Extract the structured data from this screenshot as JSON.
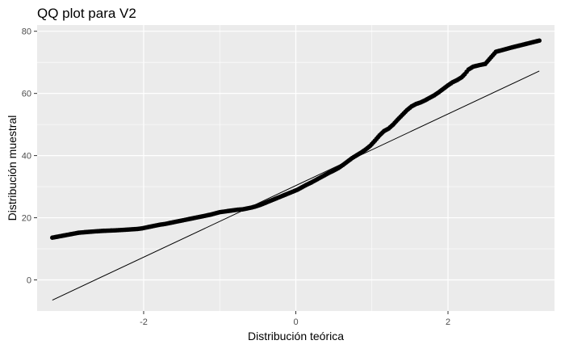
{
  "chart_data": {
    "type": "scatter",
    "title": "QQ plot para V2",
    "xlabel": "Distribución teórica",
    "ylabel": "Distribución muestral",
    "xlim": [
      -3.4,
      3.4
    ],
    "ylim": [
      -10,
      82
    ],
    "x_ticks": [
      -2,
      0,
      2
    ],
    "y_ticks": [
      0,
      20,
      40,
      60,
      80
    ],
    "grid": true,
    "legend": "none",
    "colors": {
      "panel": "#ebebeb",
      "grid": "#ffffff",
      "points": "#000000",
      "line": "#000000"
    },
    "reference_line": {
      "x": [
        -3.2,
        3.2
      ],
      "y": [
        -6.5,
        67.2
      ]
    },
    "points": {
      "x": [
        -3.2,
        -2.85,
        -2.65,
        -2.52,
        -2.42,
        -2.33,
        -2.26,
        -2.2,
        -2.14,
        -2.08,
        -2.02,
        -1.96,
        -1.9,
        -1.84,
        -1.78,
        -1.72,
        -1.66,
        -1.6,
        -1.54,
        -1.48,
        -1.42,
        -1.36,
        -1.3,
        -1.24,
        -1.18,
        -1.12,
        -1.06,
        -1.0,
        -0.94,
        -0.88,
        -0.82,
        -0.76,
        -0.7,
        -0.64,
        -0.58,
        -0.52,
        -0.46,
        -0.4,
        -0.34,
        -0.28,
        -0.22,
        -0.16,
        -0.1,
        -0.04,
        0.02,
        0.08,
        0.14,
        0.2,
        0.26,
        0.32,
        0.38,
        0.44,
        0.5,
        0.56,
        0.62,
        0.68,
        0.74,
        0.8,
        0.86,
        0.92,
        0.98,
        1.04,
        1.1,
        1.16,
        1.22,
        1.28,
        1.34,
        1.4,
        1.46,
        1.52,
        1.58,
        1.64,
        1.7,
        1.76,
        1.82,
        1.88,
        1.94,
        2.0,
        2.06,
        2.12,
        2.18,
        2.22,
        2.27,
        2.33,
        2.41,
        2.49,
        2.63,
        2.84,
        3.2
      ],
      "y": [
        13.6,
        15.2,
        15.6,
        15.8,
        15.9,
        16.0,
        16.1,
        16.2,
        16.3,
        16.4,
        16.6,
        16.9,
        17.2,
        17.5,
        17.8,
        18.0,
        18.3,
        18.6,
        18.9,
        19.2,
        19.5,
        19.8,
        20.1,
        20.4,
        20.7,
        21.0,
        21.4,
        21.8,
        22.0,
        22.2,
        22.4,
        22.6,
        22.7,
        23.0,
        23.3,
        23.7,
        24.2,
        24.8,
        25.4,
        26.0,
        26.6,
        27.2,
        27.8,
        28.4,
        29.0,
        29.8,
        30.6,
        31.3,
        32.1,
        32.9,
        33.7,
        34.5,
        35.2,
        36.0,
        37.0,
        38.1,
        39.2,
        40.1,
        41.0,
        42.0,
        43.2,
        44.8,
        46.5,
        47.9,
        48.7,
        50.0,
        51.6,
        53.1,
        54.6,
        55.8,
        56.6,
        57.1,
        57.8,
        58.6,
        59.4,
        60.4,
        61.5,
        62.6,
        63.6,
        64.3,
        65.2,
        66.2,
        67.7,
        68.6,
        69.1,
        69.5,
        73.4,
        74.8,
        77.0
      ]
    }
  }
}
